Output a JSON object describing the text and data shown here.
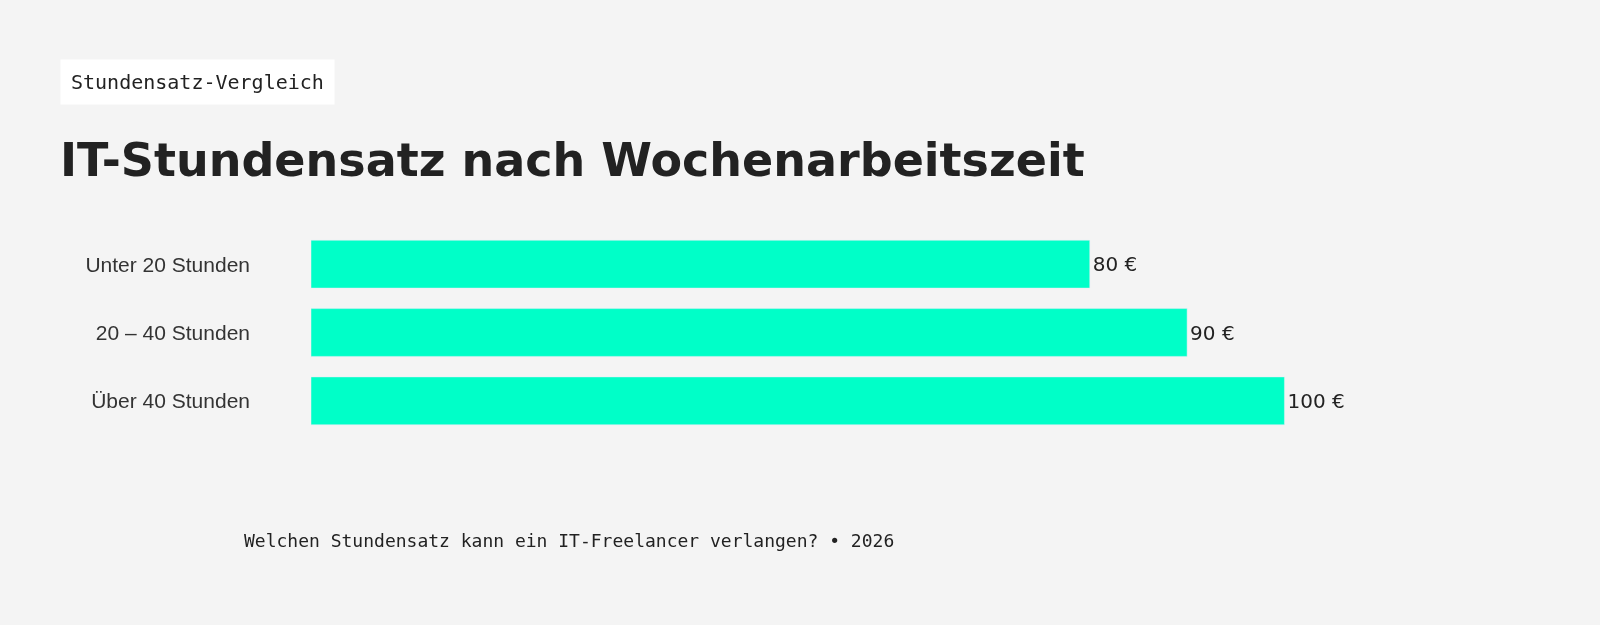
{
  "chart_data": {
    "type": "bar",
    "orientation": "horizontal",
    "title": "IT-Stundensatz nach Wochenarbeitszeit",
    "subtitle": "Stundensatz-Vergleich",
    "categories": [
      "Unter 20 Stunden",
      "20 – 40 Stunden",
      "Über 40 Stunden"
    ],
    "values": [
      80,
      90,
      100
    ],
    "value_labels": [
      "80 €",
      "90 €",
      "100 €"
    ],
    "color": "#00ffc8",
    "annotations": [
      "Welchen Stundensatz kann ein IT-Freelancer verlangen? • 2026"
    ]
  }
}
